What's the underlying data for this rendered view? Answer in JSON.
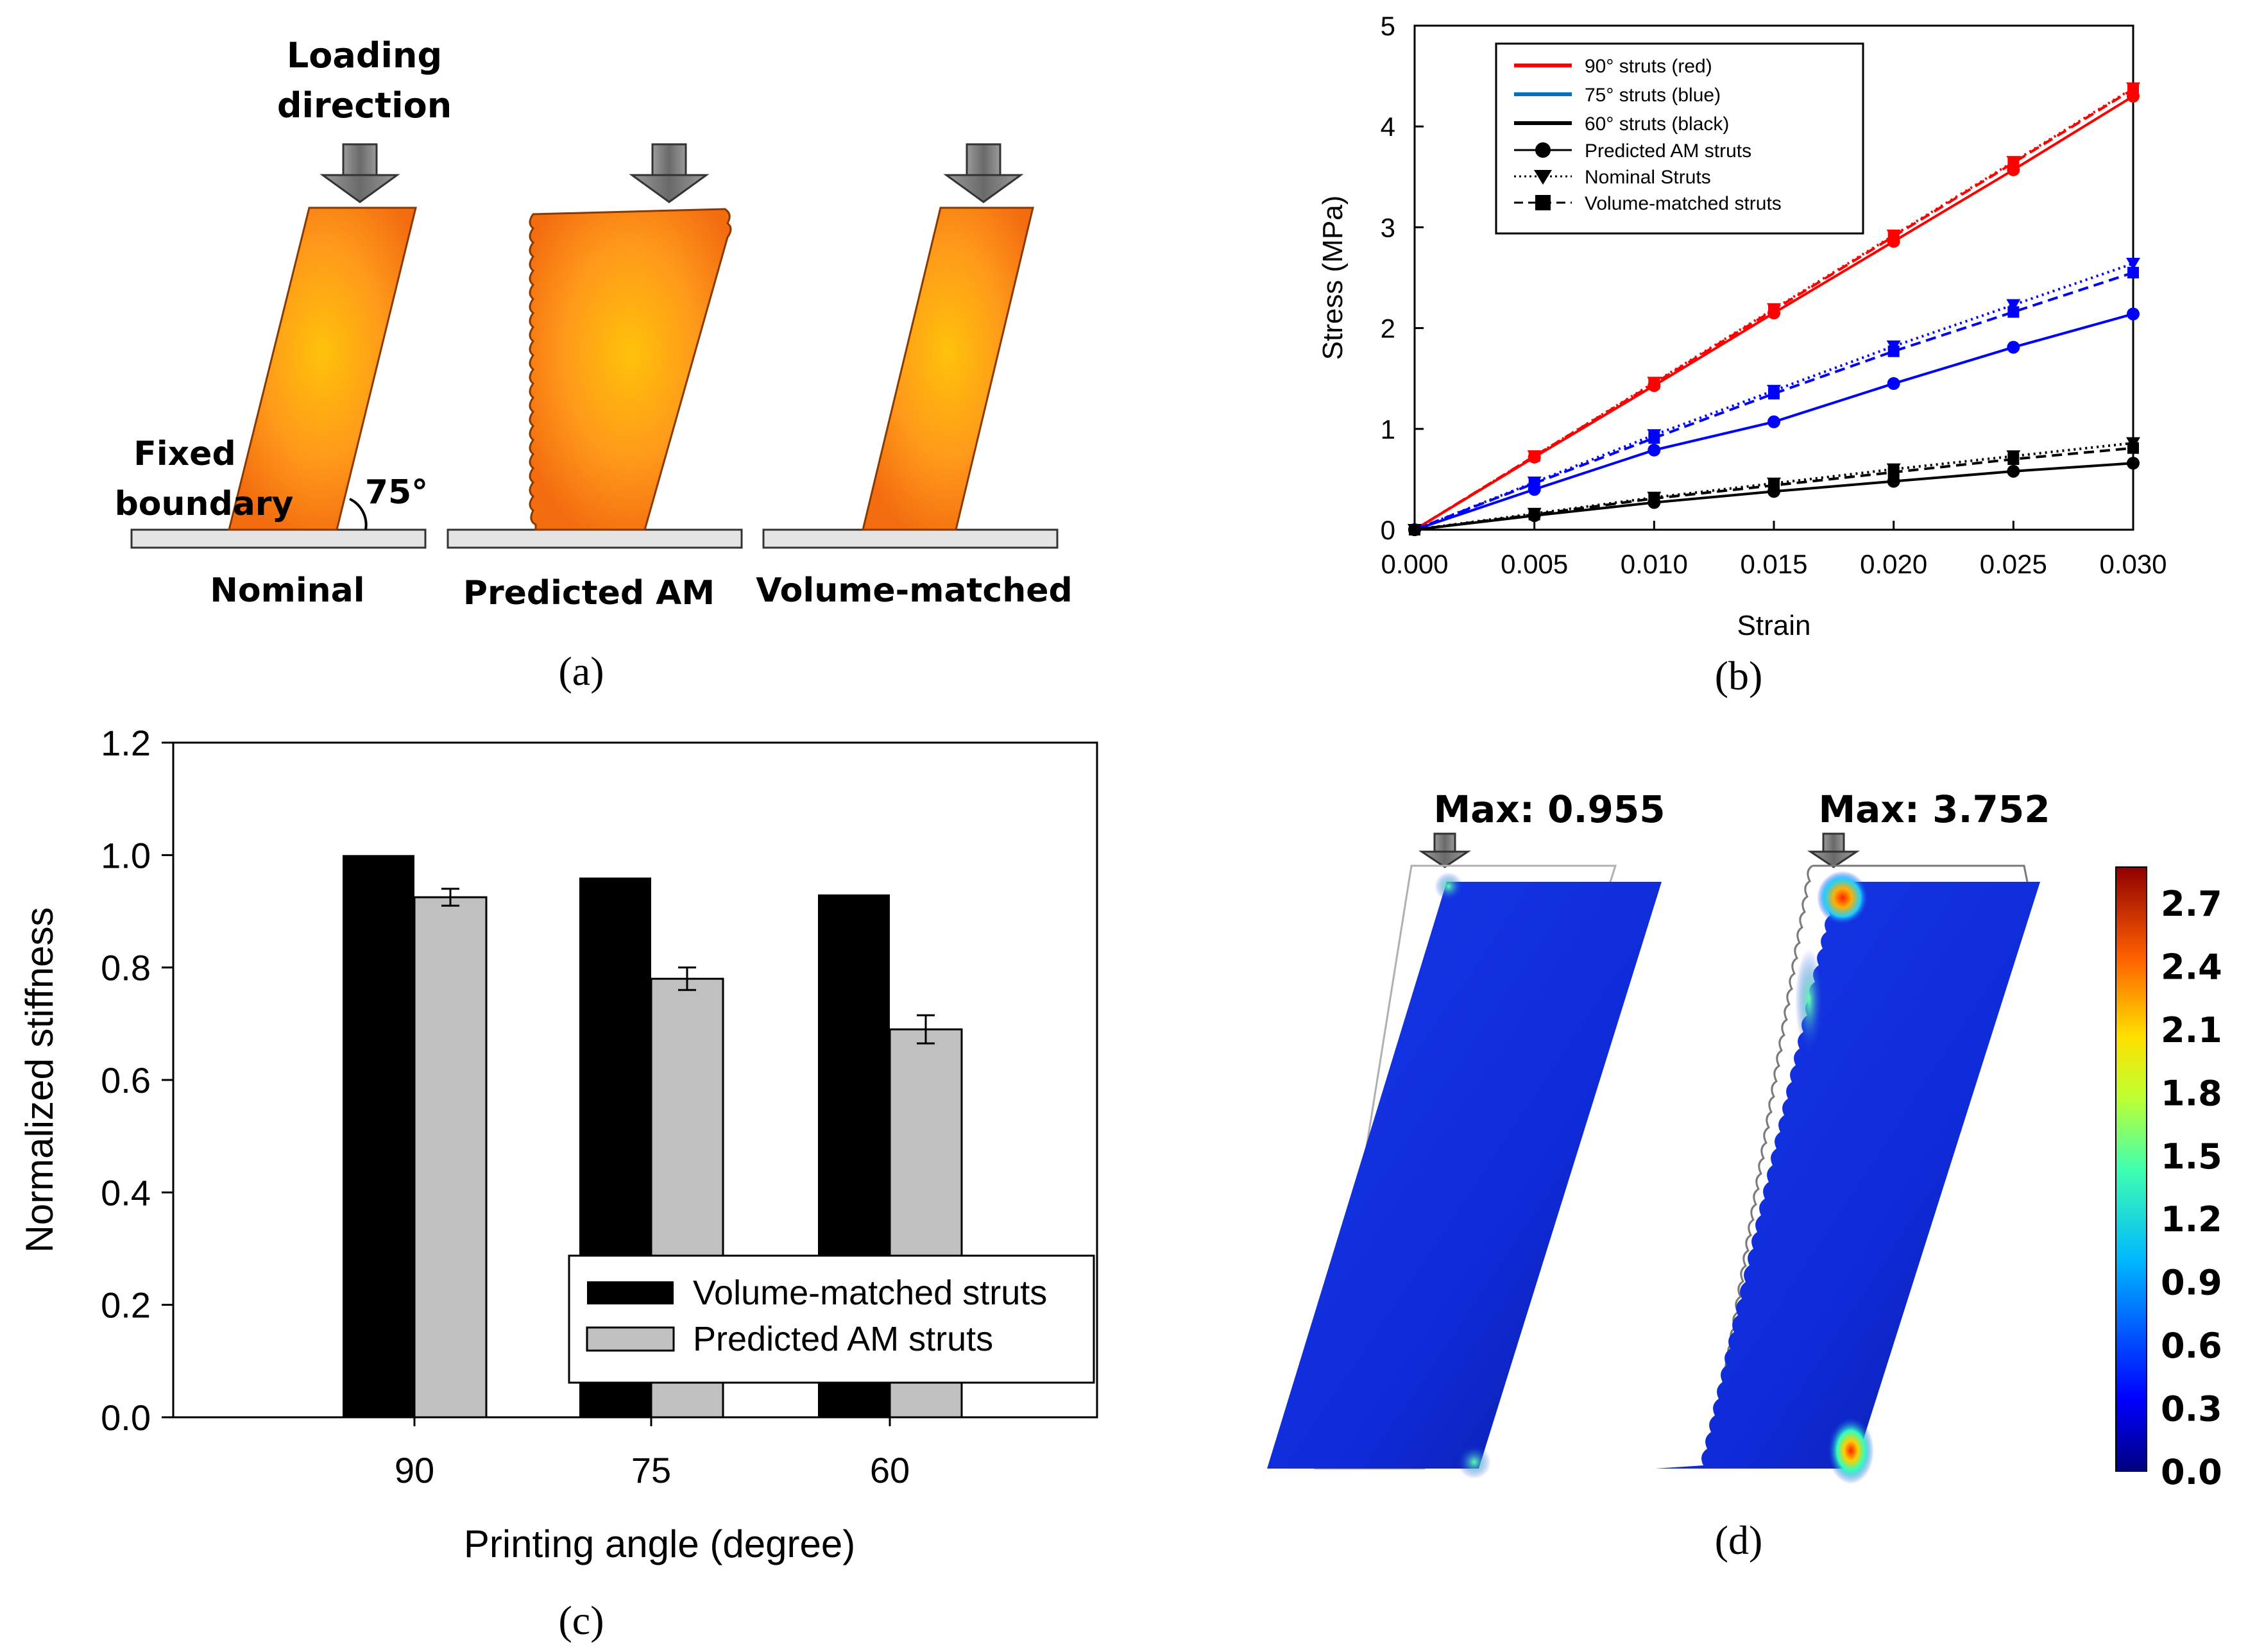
{
  "panel_labels": {
    "a": "(a)",
    "b": "(b)",
    "c": "(c)",
    "d": "(d)"
  },
  "panel_a": {
    "loading_direction_line1": "Loading",
    "loading_direction_line2": "direction",
    "fixed_boundary_line1": "Fixed",
    "fixed_boundary_line2": "boundary",
    "angle": "75°",
    "labels": [
      "Nominal",
      "Predicted AM",
      "Volume-matched"
    ]
  },
  "panel_d": {
    "max_left": "Max: 0.955",
    "max_right": "Max: 3.752",
    "colorbar_ticks": [
      "2.7",
      "2.4",
      "2.1",
      "1.8",
      "1.5",
      "1.2",
      "0.9",
      "0.6",
      "0.3",
      "0.0"
    ]
  },
  "colors": {
    "red": "#ff0000",
    "blue": "#0000ff",
    "black": "#000000",
    "bar_black": "#000000",
    "bar_gray": "#c0c0c0",
    "strut_orange": "#ff8c1a",
    "field_blue": "#1230e0"
  },
  "chart_data": [
    {
      "id": "b",
      "type": "line",
      "xlabel": "Strain",
      "ylabel": "Stress (MPa)",
      "xlim": [
        0,
        0.03
      ],
      "ylim": [
        0,
        5
      ],
      "x_ticks": [
        "0.000",
        "0.005",
        "0.010",
        "0.015",
        "0.020",
        "0.025",
        "0.030"
      ],
      "y_ticks": [
        "0",
        "1",
        "2",
        "3",
        "4",
        "5"
      ],
      "legend": [
        "90° struts (red)",
        "75° struts (blue)",
        "60° struts (black)",
        "Predicted AM struts",
        "Nominal Struts",
        "Volume-matched struts"
      ],
      "x": [
        0,
        0.005,
        0.01,
        0.015,
        0.02,
        0.025,
        0.03
      ],
      "series": [
        {
          "name": "90° Predicted AM",
          "color": "red",
          "style": "solid",
          "marker": "circle",
          "values": [
            0,
            0.72,
            1.43,
            2.15,
            2.86,
            3.57,
            4.3
          ]
        },
        {
          "name": "90° Nominal",
          "color": "red",
          "style": "dotted",
          "marker": "triangle",
          "values": [
            0,
            0.73,
            1.46,
            2.19,
            2.92,
            3.65,
            4.38
          ]
        },
        {
          "name": "90° Volume-matched",
          "color": "red",
          "style": "dashed",
          "marker": "square",
          "values": [
            0,
            0.73,
            1.45,
            2.18,
            2.91,
            3.64,
            4.37
          ]
        },
        {
          "name": "75° Predicted AM",
          "color": "blue",
          "style": "solid",
          "marker": "circle",
          "values": [
            0,
            0.4,
            0.79,
            1.07,
            1.45,
            1.81,
            2.14
          ]
        },
        {
          "name": "75° Nominal",
          "color": "blue",
          "style": "dotted",
          "marker": "triangle",
          "values": [
            0,
            0.47,
            0.94,
            1.38,
            1.82,
            2.23,
            2.64
          ]
        },
        {
          "name": "75° Volume-matched",
          "color": "blue",
          "style": "dashed",
          "marker": "square",
          "values": [
            0,
            0.46,
            0.91,
            1.35,
            1.77,
            2.16,
            2.55
          ]
        },
        {
          "name": "60° Predicted AM",
          "color": "black",
          "style": "solid",
          "marker": "circle",
          "values": [
            0,
            0.14,
            0.27,
            0.38,
            0.48,
            0.58,
            0.66
          ]
        },
        {
          "name": "60° Nominal",
          "color": "black",
          "style": "dotted",
          "marker": "triangle",
          "values": [
            0,
            0.16,
            0.32,
            0.46,
            0.6,
            0.73,
            0.86
          ]
        },
        {
          "name": "60° Volume-matched",
          "color": "black",
          "style": "dashed",
          "marker": "square",
          "values": [
            0,
            0.15,
            0.31,
            0.44,
            0.57,
            0.7,
            0.81
          ]
        }
      ]
    },
    {
      "id": "c",
      "type": "bar",
      "xlabel": "Printing angle (degree)",
      "ylabel": "Normalized stiffness",
      "ylim": [
        0,
        1.2
      ],
      "y_ticks": [
        "0.0",
        "0.2",
        "0.4",
        "0.6",
        "0.8",
        "1.0",
        "1.2"
      ],
      "categories": [
        "90",
        "75",
        "60"
      ],
      "legend": [
        "Volume-matched struts",
        "Predicted AM struts"
      ],
      "series": [
        {
          "name": "Volume-matched struts",
          "color": "bar_black",
          "values": [
            1.0,
            0.96,
            0.93
          ]
        },
        {
          "name": "Predicted AM struts",
          "color": "bar_gray",
          "values": [
            0.925,
            0.78,
            0.69
          ],
          "errors": [
            0.015,
            0.02,
            0.025
          ]
        }
      ]
    }
  ]
}
